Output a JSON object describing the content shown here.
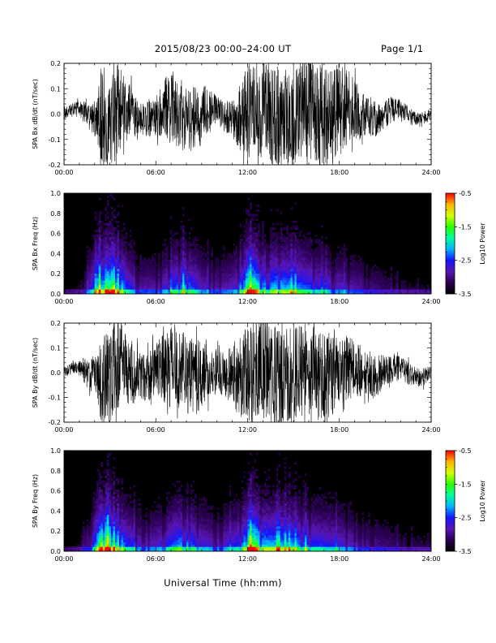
{
  "header": {
    "title": "2015/08/23  00:00–24:00 UT",
    "page": "Page 1/1"
  },
  "footer": {
    "xlabel": "Universal Time (hh:mm)"
  },
  "colors": {
    "trace": "#000000",
    "spectrogram_background": "#000000",
    "colormap": [
      "#000000",
      "#2a0050",
      "#5a16b4",
      "#1414ff",
      "#00b4ff",
      "#00ffa0",
      "#28ff00",
      "#d2ff00",
      "#ffb400",
      "#ff0000"
    ]
  },
  "chart_data": [
    {
      "type": "line",
      "panel": "time-series",
      "ylabel": "SPA Bx dB/dt (nT/sec)",
      "x_ticklabels": [
        "00:00",
        "06:00",
        "12:00",
        "18:00",
        "24:00"
      ],
      "y_ticklabels": [
        "-0.2",
        "-0.1",
        "0.0",
        "0.1",
        "0.2"
      ],
      "xlim": [
        0,
        24
      ],
      "ylim": [
        -0.2,
        0.2
      ],
      "grid": false,
      "series": [
        {
          "x": [
            0,
            1,
            2,
            2.5,
            3,
            3.5,
            4,
            5,
            6,
            6.5,
            7,
            8,
            9,
            9.5,
            10,
            11,
            12,
            12.5,
            13,
            14,
            15,
            16,
            17,
            18,
            19,
            20,
            21,
            22,
            23,
            24
          ],
          "amplitude": [
            0.02,
            0.03,
            0.07,
            0.2,
            0.2,
            0.2,
            0.13,
            0.06,
            0.09,
            0.11,
            0.14,
            0.13,
            0.12,
            0.08,
            0.05,
            0.07,
            0.2,
            0.2,
            0.2,
            0.2,
            0.2,
            0.2,
            0.2,
            0.2,
            0.12,
            0.08,
            0.06,
            0.04,
            0.03,
            0.02
          ]
        }
      ]
    },
    {
      "type": "heatmap",
      "panel": "spectrogram",
      "ylabel": "SPA Bx Freq (Hz)",
      "x_ticklabels": [
        "00:00",
        "06:00",
        "12:00",
        "18:00",
        "24:00"
      ],
      "y_ticklabels": [
        "0.0",
        "0.2",
        "0.4",
        "0.6",
        "0.8",
        "1.0"
      ],
      "xlim": [
        0,
        24
      ],
      "ylim": [
        0,
        1.0
      ],
      "colorbar": {
        "label": "Log10 Power",
        "ticklabels": [
          "-0.5",
          "-1.5",
          "-2.5",
          "-3.5"
        ],
        "range": [
          -3.5,
          -0.5
        ]
      },
      "activity_profile": {
        "x": [
          0,
          1,
          1.5,
          2,
          2.5,
          3,
          3.3,
          4,
          5,
          6,
          7,
          7.5,
          8,
          9,
          10,
          11,
          11.7,
          12,
          12.5,
          13,
          14,
          15,
          16,
          17,
          18,
          19,
          20,
          21,
          22,
          23,
          24
        ],
        "level": [
          0.05,
          0.1,
          0.2,
          0.5,
          0.9,
          0.8,
          1.0,
          0.45,
          0.25,
          0.25,
          0.4,
          0.5,
          0.55,
          0.3,
          0.25,
          0.3,
          0.45,
          0.85,
          0.8,
          0.55,
          0.6,
          0.55,
          0.45,
          0.35,
          0.3,
          0.25,
          0.2,
          0.15,
          0.12,
          0.1,
          0.08
        ]
      }
    },
    {
      "type": "line",
      "panel": "time-series",
      "ylabel": "SPA By dB/dt (nT/sec)",
      "x_ticklabels": [
        "00:00",
        "06:00",
        "12:00",
        "18:00",
        "24:00"
      ],
      "y_ticklabels": [
        "-0.2",
        "-0.1",
        "0.0",
        "0.1",
        "0.2"
      ],
      "xlim": [
        0,
        24
      ],
      "ylim": [
        -0.2,
        0.2
      ],
      "grid": false,
      "series": [
        {
          "x": [
            0,
            1,
            2,
            2.5,
            3,
            3.5,
            4,
            5,
            6,
            6.5,
            7,
            8,
            9,
            9.5,
            10,
            11,
            12,
            12.5,
            13,
            14,
            15,
            16,
            17,
            18,
            19,
            20,
            21,
            22,
            23,
            24
          ],
          "amplitude": [
            0.02,
            0.03,
            0.09,
            0.2,
            0.2,
            0.2,
            0.15,
            0.1,
            0.12,
            0.14,
            0.17,
            0.16,
            0.15,
            0.11,
            0.09,
            0.12,
            0.2,
            0.2,
            0.2,
            0.2,
            0.2,
            0.2,
            0.17,
            0.15,
            0.12,
            0.09,
            0.07,
            0.05,
            0.04,
            0.03
          ]
        }
      ]
    },
    {
      "type": "heatmap",
      "panel": "spectrogram",
      "ylabel": "SPA By Freq (Hz)",
      "x_ticklabels": [
        "00:00",
        "06:00",
        "12:00",
        "18:00",
        "24:00"
      ],
      "y_ticklabels": [
        "0.0",
        "0.2",
        "0.4",
        "0.6",
        "0.8",
        "1.0"
      ],
      "xlim": [
        0,
        24
      ],
      "ylim": [
        0,
        1.0
      ],
      "colorbar": {
        "label": "Log10 Power",
        "ticklabels": [
          "-0.5",
          "-1.5",
          "-2.5",
          "-3.5"
        ],
        "range": [
          -3.5,
          -0.5
        ]
      },
      "activity_profile": {
        "x": [
          0,
          1,
          1.5,
          2,
          2.5,
          3,
          3.3,
          4,
          5,
          6,
          7,
          7.5,
          8,
          9,
          10,
          11,
          11.7,
          12,
          12.5,
          13,
          14,
          15,
          16,
          17,
          18,
          19,
          20,
          21,
          22,
          23,
          24
        ],
        "level": [
          0.05,
          0.1,
          0.2,
          0.45,
          1.0,
          0.85,
          0.9,
          0.45,
          0.3,
          0.3,
          0.45,
          0.55,
          0.55,
          0.35,
          0.3,
          0.35,
          0.5,
          0.9,
          0.85,
          0.6,
          0.6,
          0.55,
          0.45,
          0.4,
          0.35,
          0.28,
          0.22,
          0.18,
          0.14,
          0.12,
          0.1
        ]
      }
    }
  ]
}
